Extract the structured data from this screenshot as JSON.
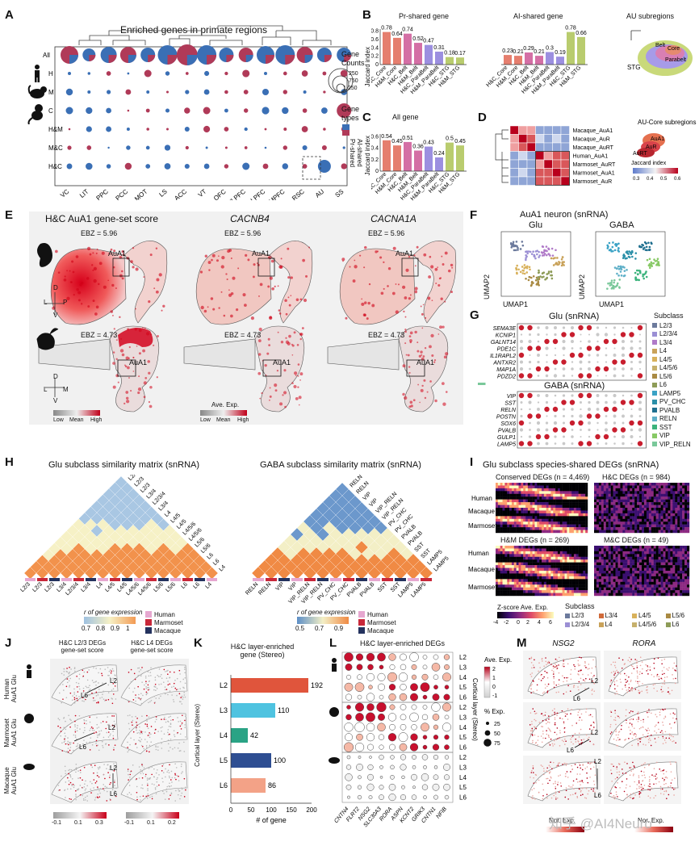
{
  "panel_labels": [
    "A",
    "B",
    "C",
    "D",
    "E",
    "F",
    "G",
    "H",
    "I",
    "J",
    "K",
    "L",
    "M"
  ],
  "panelA": {
    "title": "Enriched genes in primate regions",
    "rows": [
      "All",
      "H",
      "M",
      "C",
      "H&M",
      "M&C",
      "H&C"
    ],
    "cols": [
      "VC",
      "LIT",
      "PPC",
      "PCC",
      "MOT",
      "LS",
      "ACC",
      "VT",
      "OFC",
      "VLPFC",
      "DLPFC",
      "MPFC",
      "RSC",
      "AU",
      "SS"
    ],
    "legend_counts_title": "Gene\nCounts",
    "legend_counts": [
      "250",
      "750",
      "1,250"
    ],
    "legend_types_title": "Gene\ntypes",
    "legend_types": [
      "Pr-shared",
      "AI-shared"
    ]
  },
  "panelB": {
    "left_title": "Pr-shared gene",
    "right_title": "AI-shared gene",
    "ylabel": "Jaccard index",
    "yticks": [
      "0.8",
      "0.6",
      "0.4",
      "0.2",
      "0"
    ],
    "aux_title": "AU subregions",
    "aux_labels": [
      "Core",
      "Belt",
      "Parabelt",
      "STG"
    ]
  },
  "panelC": {
    "title": "All gene",
    "ylabel": "Jaccard index",
    "yticks": [
      "0.6",
      "0.4",
      "0.2",
      "0"
    ]
  },
  "panelD": {
    "rows": [
      "Macaque_AuA1",
      "Macaque_AuR",
      "Macaque_AuRT",
      "Human_AuA1",
      "Marmoset_AuRT",
      "Marmoset_AuA1",
      "Marmoset_AuR"
    ],
    "aux_title": "AU-Core subregions",
    "aux_labels": [
      "AuA1",
      "AuR",
      "AuRT"
    ],
    "scale_title": "Jaccard index",
    "scale_ticks": [
      "0.3",
      "0.4",
      "0.5",
      "0.6"
    ]
  },
  "panelE": {
    "col_titles": [
      "H&C AuA1 gene-set score",
      "CACNB4",
      "CACNA1A"
    ],
    "ebz_top": "EBZ = 5.96",
    "ebz_bottom": "EBZ = 4.73",
    "region": "AuA1",
    "axes_top": [
      "D",
      "L",
      "P",
      "V"
    ],
    "axes_bottom": [
      "D",
      "L",
      "M",
      "V"
    ],
    "legend_ticks": [
      "Low",
      "Mean",
      "High"
    ],
    "legend_mid_title": "Ave. Exp."
  },
  "panelF": {
    "title": "AuA1 neuron (snRNA)",
    "left": "Glu",
    "right": "GABA",
    "ax1": "UMAP1",
    "ax2": "UMAP2"
  },
  "panelG": {
    "glu_title": "Glu (snRNA)",
    "gaba_title": "GABA (snRNA)",
    "glu_genes": [
      "SEMA3E",
      "KCNIP1",
      "GALNT14",
      "PDE1C",
      "IL1RAPL2",
      "ANTXR2",
      "MAP1A",
      "PDZD2"
    ],
    "gaba_genes": [
      "VIP",
      "SST",
      "RELN",
      "POSTN",
      "SOX6",
      "PVALB",
      "GULP1",
      "LAMP5"
    ],
    "subclass_title": "Subclass",
    "subclasses": [
      "L2/3",
      "L2/3/4",
      "L3/4",
      "L4",
      "L4/5",
      "L4/5/6",
      "L5/6",
      "L6",
      "LAMP5",
      "PV_CHC",
      "PVALB",
      "RELN",
      "SST",
      "VIP",
      "VIP_RELN"
    ],
    "subclass_colors": [
      "#6c7a9c",
      "#9b8fd4",
      "#b07ac8",
      "#c9a25a",
      "#d8b15b",
      "#c6b06c",
      "#a98a43",
      "#8e9c58",
      "#3aa2c5",
      "#2b8fa8",
      "#1f6f8f",
      "#5fb0c8",
      "#3bb37c",
      "#88c966",
      "#7ac89a"
    ]
  },
  "panelH": {
    "left_title": "Glu subclass similarity matrix (snRNA)",
    "right_title": "GABA subclass similarity matrix (snRNA)",
    "left_labels": [
      "L2/3",
      "L2/3",
      "L2/3",
      "L3/4",
      "L2/3/4",
      "L3/4",
      "L4",
      "L4/5",
      "L4/5",
      "L4/5/6",
      "L4/5/6",
      "L5/6",
      "L5/6",
      "L6",
      "L6",
      "L4"
    ],
    "right_labels": [
      "RELN",
      "RELN",
      "VIP",
      "VIP",
      "VIP_RELN",
      "VIP_RELN",
      "PV_CHC",
      "PV_CHC",
      "PVALB",
      "PVALB",
      "SST",
      "SST",
      "LAMP5",
      "LAMP5"
    ],
    "scale_title": "r of gene expression",
    "left_ticks": [
      "0.7",
      "0.8",
      "0.9",
      "1"
    ],
    "right_ticks": [
      "0.5",
      "0.7",
      "0.9"
    ],
    "species": [
      "Human",
      "Marmoset",
      "Macaque"
    ],
    "species_colors": [
      "#e6a7d0",
      "#c8283a",
      "#24325e"
    ]
  },
  "panelI": {
    "title": "Glu subclass species-shared DEGs (snRNA)",
    "blocks": [
      "Conserved DEGs (n = 4,469)",
      "H&C DEGs (n = 984)",
      "H&M DEGs (n = 269)",
      "M&C DEGs (n = 49)"
    ],
    "rows": [
      "Human",
      "Macaque",
      "Marmoset"
    ],
    "scale_title": "Z-score Ave. Exp.",
    "scale_ticks": [
      "-4",
      "-2",
      "0",
      "2",
      "4",
      "6"
    ],
    "subclass_title": "Subclass",
    "subclasses": [
      "L2/3",
      "L3/4",
      "L4/5",
      "L5/6",
      "L2/3/4",
      "L4",
      "L4/5/6",
      "L6"
    ]
  },
  "panelJ": {
    "col_titles": [
      "H&C L2/3 DEGs\ngene-set score",
      "H&C L4 DEGs\ngene-set score"
    ],
    "rows": [
      "Human\nAuA1 Glu",
      "Marmoset\nAuA1 Glu",
      "Macaque\nAuA1 Glu"
    ],
    "layer_top": "L2",
    "layer_bottom": "L6",
    "left_ticks": [
      "-0.1",
      "0.1",
      "0.3"
    ],
    "right_ticks": [
      "-0.1",
      "0.1",
      "0.2"
    ]
  },
  "panelK": {
    "title": "H&C layer-enriched\ngene (Stereo)",
    "ylabel": "Cortical layer (Stereo)",
    "xlabel": "# of gene",
    "xticks": [
      "0",
      "50",
      "100",
      "150",
      "200"
    ]
  },
  "panelL": {
    "title": "H&C layer-enriched DEGs",
    "genes": [
      "CNTN4",
      "FLRT2",
      "NSG2",
      "SLC30A3",
      "RORA",
      "ASPN",
      "KCNT2",
      "GRIK3",
      "CNTN1",
      "NFIB"
    ],
    "layers": [
      "L2",
      "L3",
      "L4",
      "L5",
      "L6"
    ],
    "ylabel": "Cortical layer (Stereo)",
    "scale_title": "Ave. Exp.",
    "scale_ticks": [
      "2",
      "1",
      "0",
      "-1"
    ],
    "size_title": "% Exp.",
    "size_ticks": [
      "25",
      "50",
      "75"
    ]
  },
  "panelM": {
    "col_titles": [
      "NSG2",
      "RORA"
    ],
    "layer_top": "L2",
    "layer_bottom": "L6",
    "scale_title": "Nor. Exp.",
    "scale_ticks": [
      "0",
      "1",
      "2"
    ],
    "watermark": "知乎 @AI4Neuro"
  },
  "chart_data": [
    {
      "type": "bar",
      "title": "Pr-shared gene",
      "ylabel": "Jaccard index",
      "categories": [
        "H&C_Core",
        "H&M_Core",
        "H&C_Belt",
        "H&M_Belt",
        "H&C_ParaBelt",
        "H&M_ParaBelt",
        "H&C_STG",
        "H&M_STG"
      ],
      "values": [
        0.78,
        0.64,
        0.74,
        0.52,
        0.47,
        0.31,
        0.18,
        0.17
      ],
      "colors": [
        "#e57e6e",
        "#e57e6e",
        "#d46fa5",
        "#d46fa5",
        "#9c8fe0",
        "#9c8fe0",
        "#b9cc6e",
        "#b9cc6e"
      ],
      "ylim": [
        0,
        0.85
      ]
    },
    {
      "type": "bar",
      "title": "AI-shared gene",
      "categories": [
        "H&C_Core",
        "H&M_Core",
        "H&C_Belt",
        "H&M_Belt",
        "H&C_ParaBelt",
        "H&M_ParaBelt",
        "H&C_STG",
        "H&M_STG"
      ],
      "values": [
        0.23,
        0.21,
        0.29,
        0.21,
        0.3,
        0.19,
        0.78,
        0.66
      ],
      "colors": [
        "#e57e6e",
        "#e57e6e",
        "#d46fa5",
        "#d46fa5",
        "#9c8fe0",
        "#9c8fe0",
        "#b9cc6e",
        "#b9cc6e"
      ],
      "ylim": [
        0,
        0.85
      ]
    },
    {
      "type": "bar",
      "title": "All gene",
      "ylabel": "Jaccard index",
      "categories": [
        "H&C_Core",
        "H&M_Core",
        "H&C_Belt",
        "H&M_Belt",
        "H&C_ParaBelt",
        "H&M_ParaBelt",
        "H&C_STG",
        "H&M_STG"
      ],
      "values": [
        0.54,
        0.45,
        0.51,
        0.36,
        0.43,
        0.24,
        0.5,
        0.45
      ],
      "colors": [
        "#e57e6e",
        "#e57e6e",
        "#d46fa5",
        "#d46fa5",
        "#9c8fe0",
        "#9c8fe0",
        "#b9cc6e",
        "#b9cc6e"
      ],
      "ylim": [
        0,
        0.65
      ]
    },
    {
      "type": "bar",
      "title": "H&C layer-enriched\ngene (Stereo)",
      "ylabel": "Cortical layer (Stereo)",
      "xlabel": "# of gene",
      "categories": [
        "L2",
        "L3",
        "L4",
        "L5",
        "L6"
      ],
      "values": [
        192,
        110,
        42,
        100,
        86
      ],
      "colors": [
        "#e0553c",
        "#4fc3e0",
        "#2aa385",
        "#2e4e92",
        "#f3a287"
      ],
      "xlim": [
        0,
        200
      ]
    }
  ]
}
